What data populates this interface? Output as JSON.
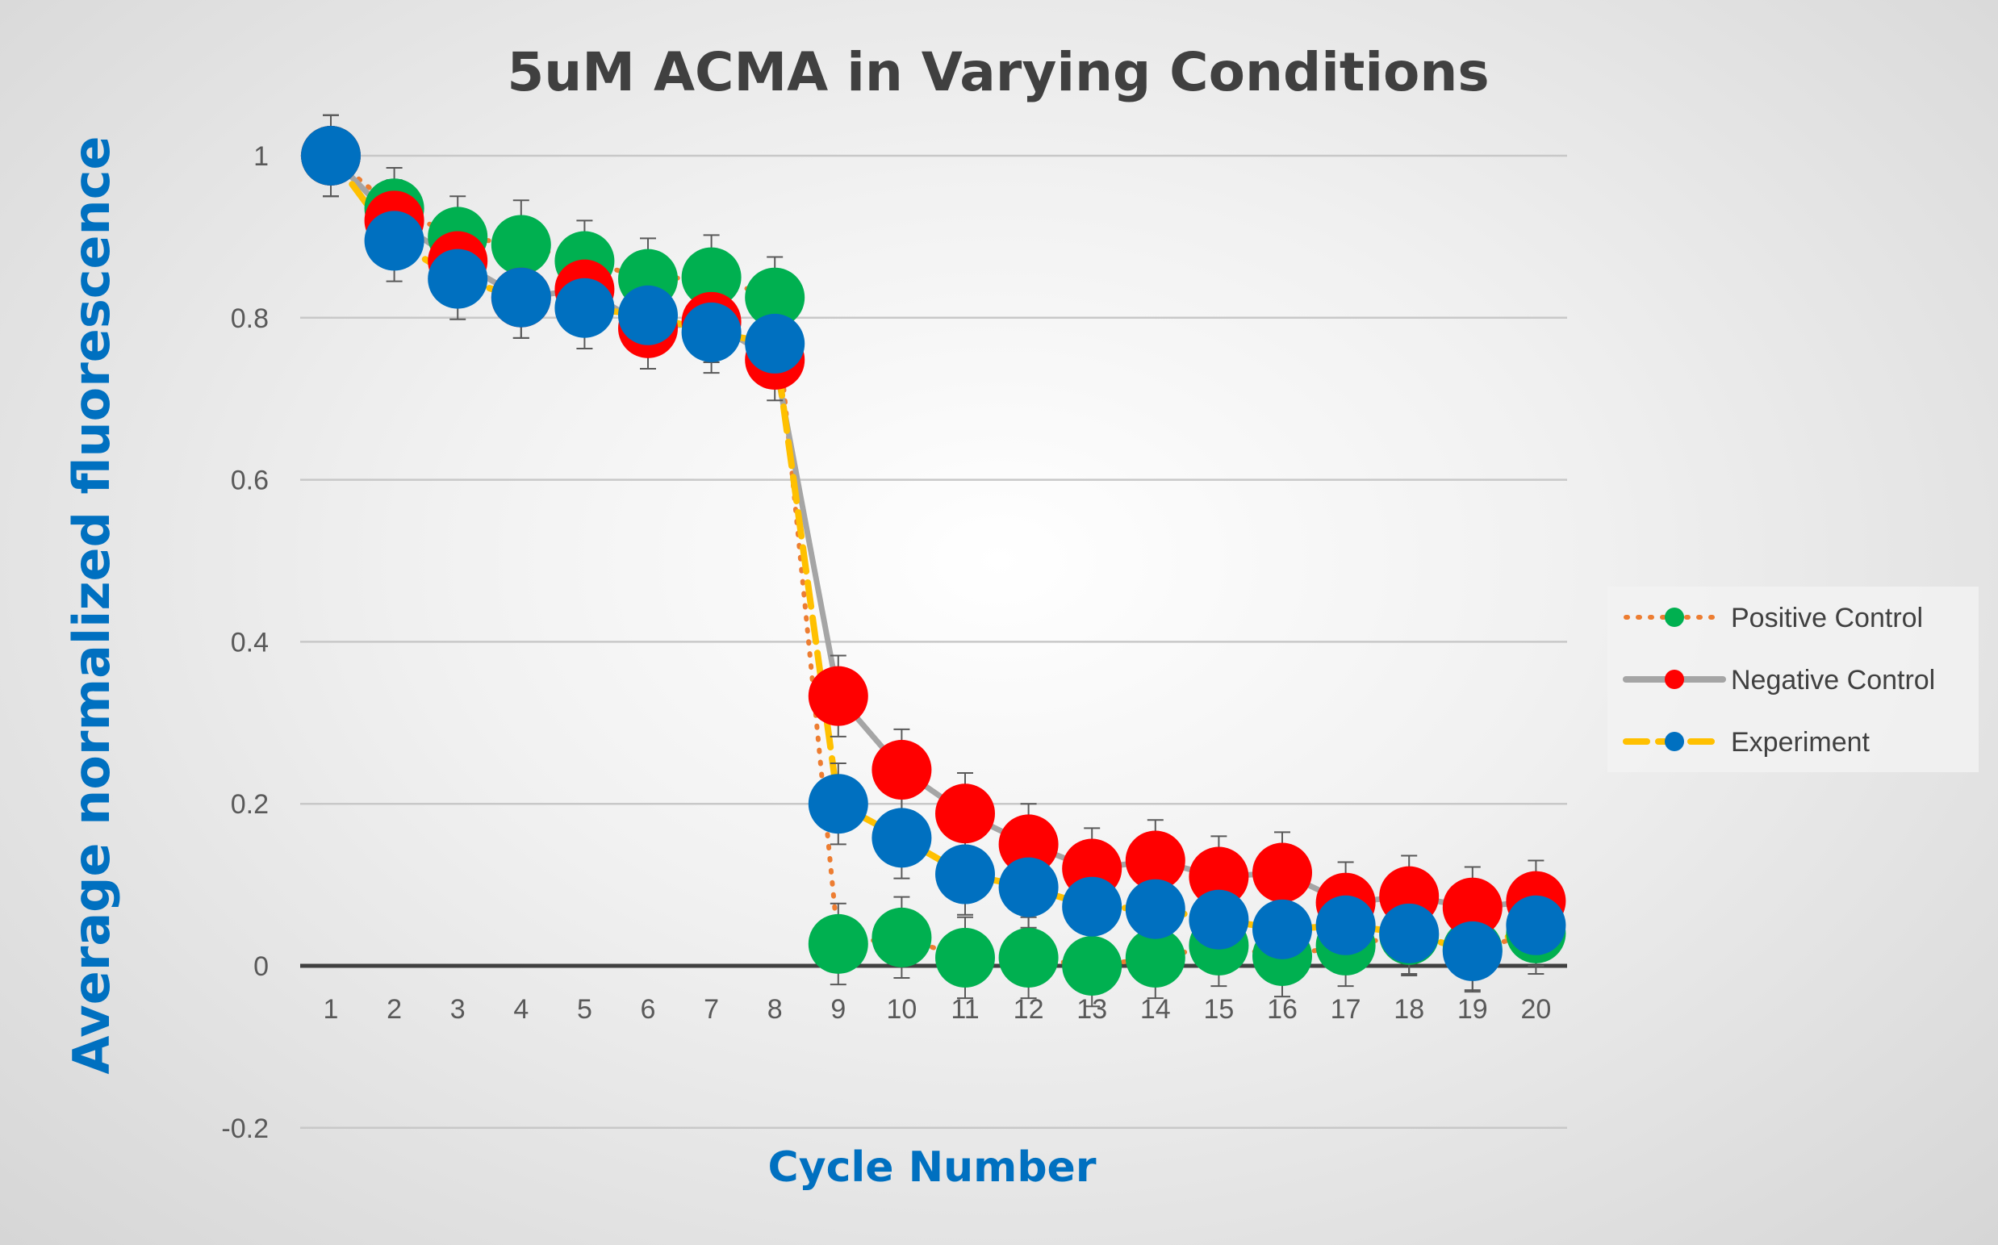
{
  "chart_data": {
    "type": "line",
    "title": "5uM ACMA in Varying Conditions",
    "xlabel": "Cycle Number",
    "ylabel": "Average normalized fluorescence",
    "x": [
      1,
      2,
      3,
      4,
      5,
      6,
      7,
      8,
      9,
      10,
      11,
      12,
      13,
      14,
      15,
      16,
      17,
      18,
      19,
      20
    ],
    "ylim": [
      -0.2,
      1
    ],
    "yticks": [
      -0.2,
      0,
      0.2,
      0.4,
      0.6,
      0.8,
      1
    ],
    "ytick_labels": [
      "-0.2",
      "0",
      "0.2",
      "0.4",
      "0.6",
      "0.8",
      "1"
    ],
    "grid": true,
    "legend_position": "right",
    "series": [
      {
        "name": "Positive Control",
        "line_color": "#ed7d31",
        "line_style": "dotted",
        "marker_color": "#00b050",
        "values": [
          1,
          0.935,
          0.9,
          0.89,
          0.87,
          0.848,
          0.85,
          0.825,
          0.027,
          0.035,
          0.01,
          0.01,
          0.0,
          0.01,
          0.025,
          0.012,
          0.025,
          0.038,
          0.02,
          0.04
        ],
        "errors": [
          0.05,
          0.05,
          0.05,
          0.055,
          0.05,
          0.05,
          0.052,
          0.05,
          0.05,
          0.05,
          0.05,
          0.05,
          0.05,
          0.05,
          0.05,
          0.05,
          0.05,
          0.05,
          0.05,
          0.05
        ]
      },
      {
        "name": "Negative Control",
        "line_color": "#a5a5a5",
        "line_style": "solid",
        "marker_color": "#ff0000",
        "values": [
          1,
          0.92,
          0.87,
          0.825,
          0.835,
          0.787,
          0.795,
          0.748,
          0.333,
          0.242,
          0.188,
          0.15,
          0.12,
          0.13,
          0.11,
          0.115,
          0.078,
          0.086,
          0.072,
          0.08
        ],
        "errors": [
          0.05,
          0.05,
          0.05,
          0.05,
          0.05,
          0.05,
          0.05,
          0.05,
          0.05,
          0.05,
          0.05,
          0.05,
          0.05,
          0.05,
          0.05,
          0.05,
          0.05,
          0.05,
          0.05,
          0.05
        ]
      },
      {
        "name": "Experiment",
        "line_color": "#ffc000",
        "line_style": "dashed",
        "marker_color": "#0070c0",
        "values": [
          1,
          0.895,
          0.848,
          0.825,
          0.812,
          0.803,
          0.782,
          0.768,
          0.2,
          0.158,
          0.113,
          0.097,
          0.073,
          0.07,
          0.057,
          0.045,
          0.05,
          0.04,
          0.018,
          0.05
        ],
        "errors": [
          0.05,
          0.05,
          0.05,
          0.05,
          0.05,
          0.05,
          0.05,
          0.05,
          0.05,
          0.05,
          0.05,
          0.05,
          0.05,
          0.05,
          0.05,
          0.05,
          0.05,
          0.05,
          0.05,
          0.05
        ]
      }
    ]
  }
}
